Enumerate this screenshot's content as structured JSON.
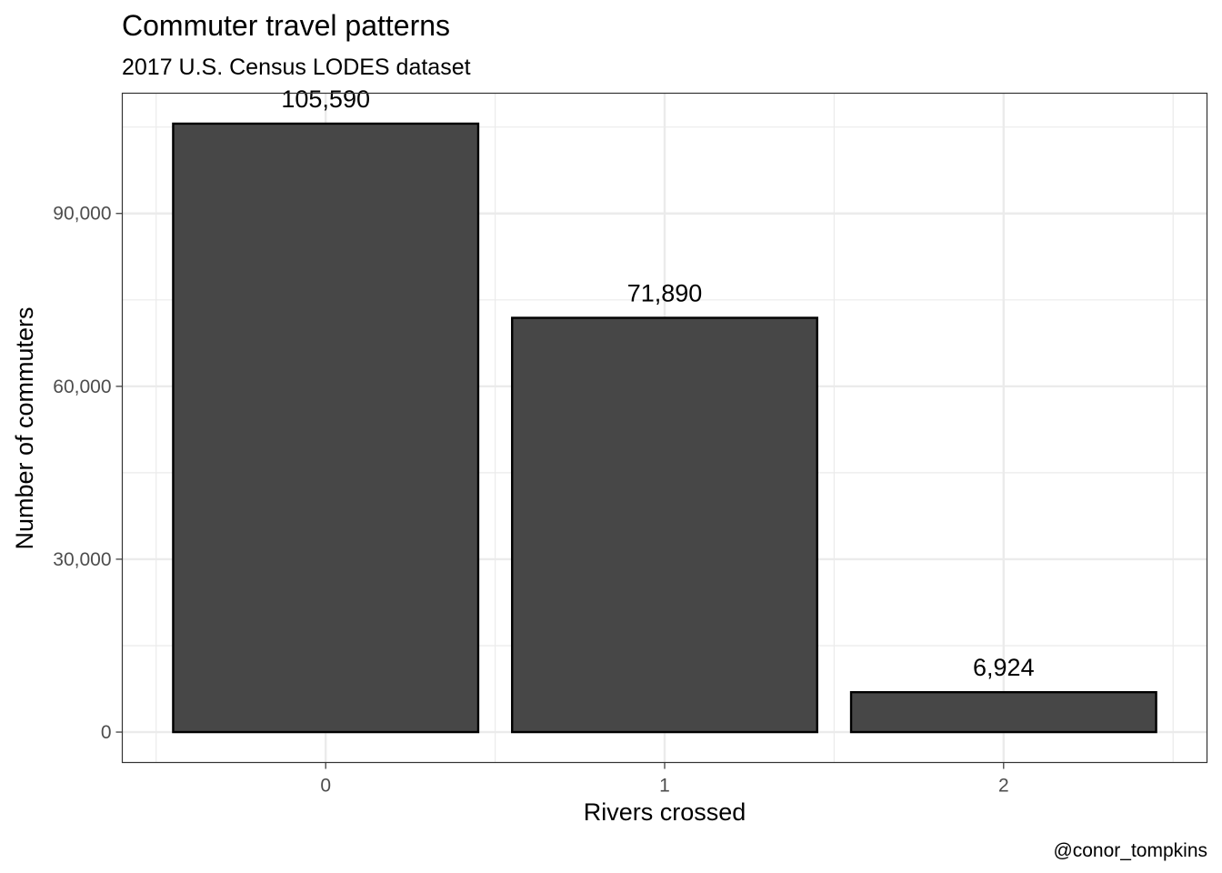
{
  "chart_data": {
    "type": "bar",
    "title": "Commuter travel patterns",
    "subtitle": "2017 U.S. Census LODES dataset",
    "xlabel": "Rivers crossed",
    "ylabel": "Number of commuters",
    "caption": "@conor_tompkins",
    "categories": [
      "0",
      "1",
      "2"
    ],
    "values": [
      105590,
      71890,
      6924
    ],
    "value_labels": [
      "105,590",
      "71,890",
      "6,924"
    ],
    "y_ticks": [
      0,
      30000,
      60000,
      90000
    ],
    "y_tick_labels": [
      "0",
      "30,000",
      "60,000",
      "90,000"
    ],
    "ylim": [
      -5280,
      110870
    ],
    "grid": true,
    "bar_fill": "#474747",
    "bar_stroke": "#000000",
    "grid_color": "#ebebeb",
    "panel_border": "#333333"
  }
}
